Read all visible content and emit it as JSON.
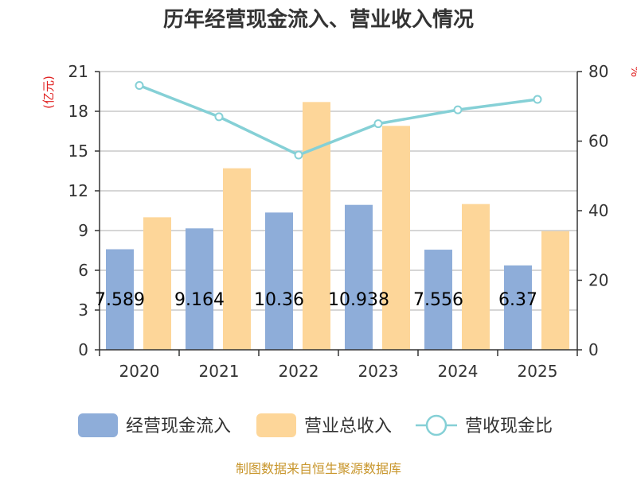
{
  "title": "历年经营现金流入、营业收入情况",
  "source": "制图数据来自恒生聚源数据库",
  "left_unit": "(亿元)",
  "right_unit": "%",
  "colors": {
    "cash_inflow": "#8eadd9",
    "revenue": "#fdd699",
    "ratio_line": "#85d0d6",
    "axis": "#333333",
    "grid": "#c8c8c8"
  },
  "chart_data": {
    "type": "bar",
    "title": "历年经营现金流入、营业收入情况",
    "categories": [
      "2020",
      "2021",
      "2022",
      "2023",
      "2024",
      "2025"
    ],
    "series": [
      {
        "name": "经营现金流入",
        "type": "bar",
        "axis": "left",
        "values": [
          7.589,
          9.164,
          10.36,
          10.938,
          7.556,
          6.37
        ],
        "labels": [
          "7.589",
          "9.164",
          "10.36",
          "10.938",
          "7.556",
          "6.37"
        ]
      },
      {
        "name": "营业总收入",
        "type": "bar",
        "axis": "left",
        "values": [
          10.0,
          13.7,
          18.7,
          16.9,
          11.0,
          8.95
        ]
      },
      {
        "name": "营收现金比",
        "type": "line",
        "axis": "right",
        "values": [
          76,
          67,
          56,
          65,
          69,
          72
        ]
      }
    ],
    "ylim_left": [
      0,
      21
    ],
    "yticks_left": [
      "0",
      "3",
      "6",
      "9",
      "12",
      "15",
      "18",
      "21"
    ],
    "ylim_right": [
      0,
      80
    ],
    "yticks_right": [
      "0",
      "20",
      "40",
      "60",
      "80"
    ],
    "grid": true,
    "legend_position": "bottom"
  }
}
